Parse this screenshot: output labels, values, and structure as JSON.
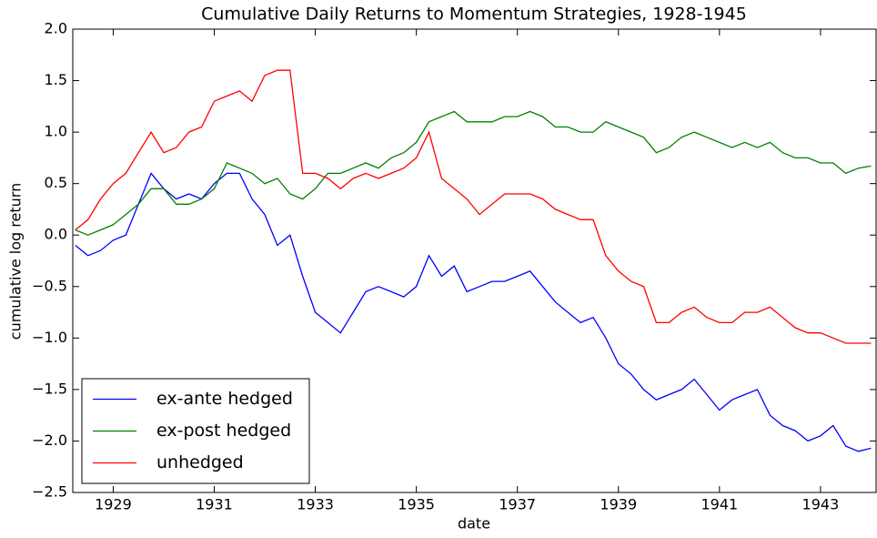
{
  "chart_data": {
    "type": "line",
    "title": "Cumulative Daily Returns to Momentum Strategies, 1928-1945",
    "x_label": "date",
    "y_label": "cumulative log return",
    "x": [
      1928.25,
      1928.5,
      1928.75,
      1929.0,
      1929.25,
      1929.5,
      1929.75,
      1930.0,
      1930.25,
      1930.5,
      1930.75,
      1931.0,
      1931.25,
      1931.5,
      1931.75,
      1932.0,
      1932.25,
      1932.5,
      1932.75,
      1933.0,
      1933.25,
      1933.5,
      1933.75,
      1934.0,
      1934.25,
      1934.5,
      1934.75,
      1935.0,
      1935.25,
      1935.5,
      1935.75,
      1936.0,
      1936.25,
      1936.5,
      1936.75,
      1937.0,
      1937.25,
      1937.5,
      1937.75,
      1938.0,
      1938.25,
      1938.5,
      1938.75,
      1939.0,
      1939.25,
      1939.5,
      1939.75,
      1940.0,
      1940.25,
      1940.5,
      1940.75,
      1941.0,
      1941.25,
      1941.5,
      1941.75,
      1942.0,
      1942.25,
      1942.5,
      1942.75,
      1943.0,
      1943.25,
      1943.5,
      1943.75,
      1944.0
    ],
    "series": [
      {
        "name": "ex-ante hedged",
        "color": "#0000ff",
        "values": [
          -0.1,
          -0.2,
          -0.15,
          -0.05,
          0,
          0.3,
          0.6,
          0.45,
          0.35,
          0.4,
          0.35,
          0.5,
          0.6,
          0.6,
          0.35,
          0.2,
          -0.1,
          0,
          -0.4,
          -0.75,
          -0.85,
          -0.95,
          -0.75,
          -0.55,
          -0.5,
          -0.55,
          -0.6,
          -0.5,
          -0.2,
          -0.4,
          -0.3,
          -0.55,
          -0.5,
          -0.45,
          -0.45,
          -0.4,
          -0.35,
          -0.5,
          -0.65,
          -0.75,
          -0.85,
          -0.8,
          -1.0,
          -1.25,
          -1.35,
          -1.5,
          -1.6,
          -1.55,
          -1.5,
          -1.4,
          -1.55,
          -1.7,
          -1.6,
          -1.55,
          -1.5,
          -1.75,
          -1.85,
          -1.9,
          -2.0,
          -1.95,
          -1.85,
          -2.05,
          -2.1,
          -2.07
        ]
      },
      {
        "name": "ex-post hedged",
        "color": "#008000",
        "values": [
          0.05,
          0,
          0.05,
          0.1,
          0.2,
          0.3,
          0.45,
          0.45,
          0.3,
          0.3,
          0.35,
          0.45,
          0.7,
          0.65,
          0.6,
          0.5,
          0.55,
          0.4,
          0.35,
          0.45,
          0.6,
          0.6,
          0.65,
          0.7,
          0.65,
          0.75,
          0.8,
          0.9,
          1.1,
          1.15,
          1.2,
          1.1,
          1.1,
          1.1,
          1.15,
          1.15,
          1.2,
          1.15,
          1.05,
          1.05,
          1.0,
          1.0,
          1.1,
          1.05,
          1.0,
          0.95,
          0.8,
          0.85,
          0.95,
          1.0,
          0.95,
          0.9,
          0.85,
          0.9,
          0.85,
          0.9,
          0.8,
          0.75,
          0.75,
          0.7,
          0.7,
          0.6,
          0.65,
          0.67
        ]
      },
      {
        "name": "unhedged",
        "color": "#ff0000",
        "values": [
          0.05,
          0.15,
          0.35,
          0.5,
          0.6,
          0.8,
          1.0,
          0.8,
          0.85,
          1.0,
          1.05,
          1.3,
          1.35,
          1.4,
          1.3,
          1.55,
          1.6,
          1.6,
          0.6,
          0.6,
          0.55,
          0.45,
          0.55,
          0.6,
          0.55,
          0.6,
          0.65,
          0.75,
          1.0,
          0.55,
          0.45,
          0.35,
          0.2,
          0.3,
          0.4,
          0.4,
          0.4,
          0.35,
          0.25,
          0.2,
          0.15,
          0.15,
          -0.2,
          -0.35,
          -0.45,
          -0.5,
          -0.85,
          -0.85,
          -0.75,
          -0.7,
          -0.8,
          -0.85,
          -0.85,
          -0.75,
          -0.75,
          -0.7,
          -0.8,
          -0.9,
          -0.95,
          -0.95,
          -1.0,
          -1.05,
          -1.05,
          -1.05
        ]
      }
    ],
    "xlim": [
      1928.2,
      1944.1
    ],
    "ylim": [
      -2.5,
      2.0
    ],
    "xticks": [
      1929,
      1931,
      1933,
      1935,
      1937,
      1939,
      1941,
      1943
    ],
    "yticks": [
      {
        "value": -2.5,
        "label": "−2.5"
      },
      {
        "value": -2.0,
        "label": "−2.0"
      },
      {
        "value": -1.5,
        "label": "−1.5"
      },
      {
        "value": -1.0,
        "label": "−1.0"
      },
      {
        "value": -0.5,
        "label": "−0.5"
      },
      {
        "value": 0.0,
        "label": "0.0"
      },
      {
        "value": 0.5,
        "label": "0.5"
      },
      {
        "value": 1.0,
        "label": "1.0"
      },
      {
        "value": 1.5,
        "label": "1.5"
      },
      {
        "value": 2.0,
        "label": "2.0"
      }
    ],
    "legend": "lower left"
  }
}
